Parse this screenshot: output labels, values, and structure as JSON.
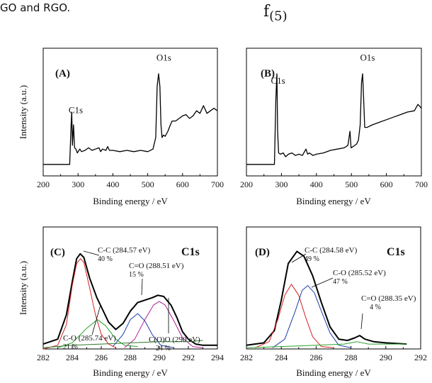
{
  "page": {
    "top_caption": "GO and RGO.",
    "figure_label_main": "f",
    "figure_label_sub": "(5)"
  },
  "chart_data": [
    {
      "id": "A",
      "type": "line",
      "panel_label": "(A)",
      "xlabel": "Binding energy / eV",
      "ylabel": "Intensity (a.u.)",
      "xlim": [
        200,
        700
      ],
      "ylim": [
        0,
        100
      ],
      "xticks": [
        200,
        300,
        400,
        500,
        600,
        700
      ],
      "y_tick_labels_shown": false,
      "annotations": [
        {
          "text": "C1s",
          "x": 285,
          "y": 47
        },
        {
          "text": "O1s",
          "x": 533,
          "y": 87
        }
      ],
      "series": [
        {
          "color": "#000000",
          "points": [
            [
              200,
              9
            ],
            [
              270,
              9
            ],
            [
              276,
              9
            ],
            [
              280,
              40
            ],
            [
              282,
              50
            ],
            [
              284,
              24
            ],
            [
              287,
              40
            ],
            [
              290,
              22
            ],
            [
              294,
              21
            ],
            [
              298,
              18
            ],
            [
              305,
              21
            ],
            [
              310,
              19
            ],
            [
              320,
              20
            ],
            [
              330,
              22
            ],
            [
              340,
              20
            ],
            [
              350,
              21
            ],
            [
              360,
              22
            ],
            [
              365,
              19
            ],
            [
              370,
              21
            ],
            [
              380,
              20
            ],
            [
              385,
              23
            ],
            [
              390,
              20
            ],
            [
              400,
              20
            ],
            [
              420,
              19
            ],
            [
              440,
              20
            ],
            [
              460,
              19
            ],
            [
              480,
              20
            ],
            [
              500,
              19
            ],
            [
              515,
              21
            ],
            [
              523,
              30
            ],
            [
              527,
              70
            ],
            [
              531,
              80
            ],
            [
              535,
              70
            ],
            [
              538,
              40
            ],
            [
              541,
              30
            ],
            [
              545,
              32
            ],
            [
              550,
              31
            ],
            [
              558,
              35
            ],
            [
              565,
              40
            ],
            [
              570,
              43
            ],
            [
              580,
              43
            ],
            [
              590,
              45
            ],
            [
              600,
              47
            ],
            [
              610,
              48
            ],
            [
              620,
              45
            ],
            [
              630,
              47
            ],
            [
              640,
              51
            ],
            [
              650,
              49
            ],
            [
              660,
              55
            ],
            [
              670,
              49
            ],
            [
              680,
              51
            ],
            [
              690,
              53
            ],
            [
              700,
              51
            ]
          ]
        }
      ]
    },
    {
      "id": "B",
      "type": "line",
      "panel_label": "(B)",
      "xlabel": "Binding energy / eV",
      "ylabel": "",
      "xlim": [
        200,
        700
      ],
      "ylim": [
        0,
        100
      ],
      "xticks": [
        200,
        300,
        400,
        500,
        600,
        700
      ],
      "y_tick_labels_shown": false,
      "annotations": [
        {
          "text": "C1s",
          "x": 286,
          "y": 70
        },
        {
          "text": "O1s",
          "x": 533,
          "y": 87
        }
      ],
      "series": [
        {
          "color": "#000000",
          "points": [
            [
              200,
              9
            ],
            [
              270,
              9
            ],
            [
              280,
              9
            ],
            [
              284,
              60
            ],
            [
              287,
              80
            ],
            [
              289,
              35
            ],
            [
              292,
              18
            ],
            [
              297,
              17
            ],
            [
              305,
              18
            ],
            [
              312,
              15
            ],
            [
              320,
              17
            ],
            [
              330,
              18
            ],
            [
              340,
              16
            ],
            [
              350,
              17
            ],
            [
              360,
              16
            ],
            [
              370,
              21
            ],
            [
              375,
              17
            ],
            [
              380,
              18
            ],
            [
              390,
              16
            ],
            [
              400,
              17
            ],
            [
              420,
              18
            ],
            [
              440,
              20
            ],
            [
              460,
              21
            ],
            [
              480,
              22
            ],
            [
              490,
              24
            ],
            [
              496,
              35
            ],
            [
              499,
              22
            ],
            [
              505,
              23
            ],
            [
              515,
              25
            ],
            [
              520,
              28
            ],
            [
              525,
              40
            ],
            [
              529,
              73
            ],
            [
              532,
              80
            ],
            [
              535,
              60
            ],
            [
              538,
              38
            ],
            [
              545,
              38
            ],
            [
              560,
              40
            ],
            [
              580,
              42
            ],
            [
              600,
              44
            ],
            [
              620,
              46
            ],
            [
              640,
              48
            ],
            [
              660,
              50
            ],
            [
              680,
              51
            ],
            [
              690,
              56
            ],
            [
              700,
              53
            ]
          ]
        }
      ]
    },
    {
      "id": "C",
      "type": "line",
      "panel_label": "(C)",
      "element_label": "C1s",
      "xlabel": "Binding energy / eV",
      "ylabel": "Intensity (a.u.)",
      "xlim": [
        282,
        294
      ],
      "ylim": [
        0,
        100
      ],
      "xticks": [
        282,
        284,
        286,
        288,
        290,
        292,
        294
      ],
      "y_tick_labels_shown": false,
      "annotations": [
        {
          "text": "C-C (284.57 eV)",
          "sub": "40 %",
          "x": 284.57
        },
        {
          "text": "C=O (288.51 eV)",
          "sub": "15 %",
          "x": 288.51
        },
        {
          "text": "C-O (285.74 eV)",
          "sub": "21 %",
          "x": 285.74
        },
        {
          "text": "C(O)O (290 eV)",
          "sub": "24 %",
          "x": 290.0
        }
      ],
      "series": [
        {
          "color": "#000000",
          "points": [
            [
              282,
              4
            ],
            [
              283,
              8
            ],
            [
              283.6,
              28
            ],
            [
              284.0,
              55
            ],
            [
              284.3,
              74
            ],
            [
              284.55,
              78
            ],
            [
              284.8,
              75
            ],
            [
              285.2,
              58
            ],
            [
              285.7,
              42
            ],
            [
              286.1,
              32
            ],
            [
              286.5,
              22
            ],
            [
              287,
              16
            ],
            [
              287.5,
              21
            ],
            [
              288,
              31
            ],
            [
              288.5,
              38
            ],
            [
              289,
              40
            ],
            [
              289.5,
              42
            ],
            [
              289.9,
              44
            ],
            [
              290.3,
              43
            ],
            [
              290.8,
              36
            ],
            [
              291.2,
              26
            ],
            [
              291.6,
              14
            ],
            [
              292,
              8
            ],
            [
              292.5,
              4
            ],
            [
              293,
              3
            ],
            [
              294,
              3
            ]
          ]
        },
        {
          "color": "#d62020",
          "points": [
            [
              282,
              0
            ],
            [
              283,
              3
            ],
            [
              283.6,
              20
            ],
            [
              284.0,
              52
            ],
            [
              284.3,
              70
            ],
            [
              284.57,
              74
            ],
            [
              284.8,
              71
            ],
            [
              285.2,
              50
            ],
            [
              285.6,
              28
            ],
            [
              286.0,
              12
            ],
            [
              286.5,
              4
            ],
            [
              287,
              1
            ]
          ]
        },
        {
          "color": "#2aa32a",
          "points": [
            [
              283,
              1
            ],
            [
              284,
              5
            ],
            [
              285,
              17
            ],
            [
              285.74,
              24
            ],
            [
              286.3,
              19
            ],
            [
              287,
              8
            ],
            [
              287.6,
              3
            ],
            [
              288.5,
              2
            ]
          ]
        },
        {
          "color": "#1e3da8",
          "points": [
            [
              286.8,
              2
            ],
            [
              287.5,
              12
            ],
            [
              288.0,
              24
            ],
            [
              288.51,
              29
            ],
            [
              289.0,
              23
            ],
            [
              289.5,
              12
            ],
            [
              290.1,
              3
            ],
            [
              291,
              1
            ]
          ]
        },
        {
          "color": "#b0209a",
          "points": [
            [
              287.6,
              1
            ],
            [
              288.3,
              8
            ],
            [
              289.0,
              24
            ],
            [
              289.6,
              36
            ],
            [
              290.0,
              39
            ],
            [
              290.4,
              36
            ],
            [
              291.0,
              23
            ],
            [
              291.6,
              9
            ],
            [
              292.3,
              2
            ],
            [
              293,
              1
            ]
          ]
        },
        {
          "color": "#2a7a2a",
          "points": [
            [
              282,
              1
            ],
            [
              284,
              3
            ],
            [
              286,
              4
            ],
            [
              288,
              5
            ],
            [
              290,
              6
            ],
            [
              292,
              6
            ],
            [
              293,
              7
            ]
          ]
        }
      ]
    },
    {
      "id": "D",
      "type": "line",
      "panel_label": "(D)",
      "element_label": "C1s",
      "xlabel": "Binding energy / eV",
      "ylabel": "",
      "xlim": [
        282,
        292
      ],
      "ylim": [
        0,
        100
      ],
      "xticks": [
        282,
        284,
        286,
        288,
        290,
        292
      ],
      "y_tick_labels_shown": false,
      "annotations": [
        {
          "text": "C-C (284.58 eV)",
          "sub": "49 %",
          "x": 284.58
        },
        {
          "text": "C-O (285.52 eV)",
          "sub": "47 %",
          "x": 285.52
        },
        {
          "text": "C=O (288.35 eV)",
          "sub": "4 %",
          "x": 288.35
        }
      ],
      "series": [
        {
          "color": "#000000",
          "points": [
            [
              282,
              3
            ],
            [
              283,
              5
            ],
            [
              283.6,
              15
            ],
            [
              284.0,
              40
            ],
            [
              284.4,
              70
            ],
            [
              284.9,
              80
            ],
            [
              285.3,
              76
            ],
            [
              285.8,
              60
            ],
            [
              286.3,
              38
            ],
            [
              286.8,
              18
            ],
            [
              287.3,
              8
            ],
            [
              287.8,
              7
            ],
            [
              288.2,
              9
            ],
            [
              288.5,
              11
            ],
            [
              288.8,
              8
            ],
            [
              289.3,
              6
            ],
            [
              290,
              5
            ],
            [
              291.2,
              4
            ]
          ]
        },
        {
          "color": "#d62020",
          "points": [
            [
              282.5,
              1
            ],
            [
              283.3,
              6
            ],
            [
              283.8,
              24
            ],
            [
              284.2,
              44
            ],
            [
              284.58,
              53
            ],
            [
              285.0,
              44
            ],
            [
              285.4,
              26
            ],
            [
              285.8,
              10
            ],
            [
              286.3,
              2
            ],
            [
              287,
              1
            ]
          ]
        },
        {
          "color": "#1e3da8",
          "points": [
            [
              283.5,
              1
            ],
            [
              284.2,
              8
            ],
            [
              284.8,
              31
            ],
            [
              285.2,
              48
            ],
            [
              285.52,
              52
            ],
            [
              285.9,
              46
            ],
            [
              286.3,
              31
            ],
            [
              286.8,
              13
            ],
            [
              287.3,
              3
            ],
            [
              288,
              1
            ]
          ]
        },
        {
          "color": "#2aa32a",
          "points": [
            [
              282,
              1
            ],
            [
              284,
              2
            ],
            [
              286,
              3
            ],
            [
              287.6,
              4
            ],
            [
              288.35,
              6
            ],
            [
              289,
              4
            ],
            [
              290,
              4
            ],
            [
              291.2,
              4
            ]
          ]
        }
      ]
    }
  ]
}
